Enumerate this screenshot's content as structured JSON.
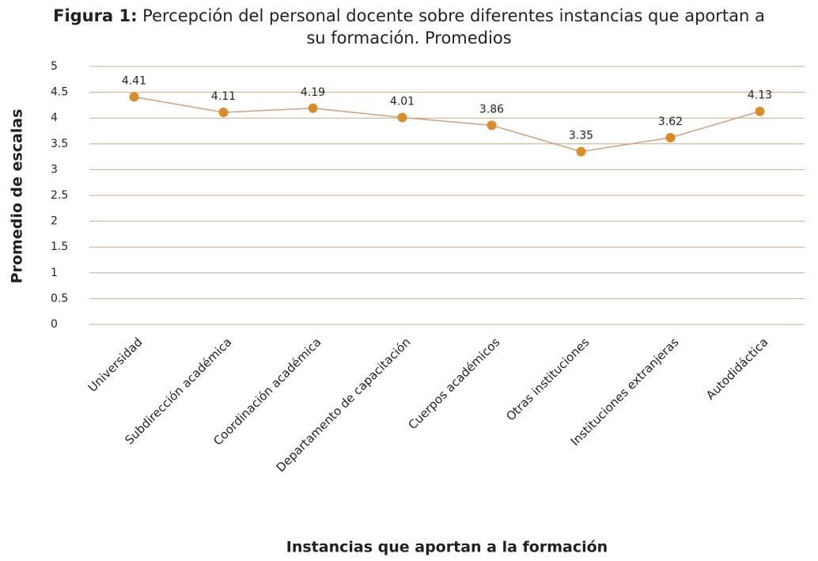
{
  "chart_data": {
    "type": "line",
    "title_prefix": "Figura 1:",
    "title": "Percepción del personal docente sobre diferentes instancias que aportan a su formación. Promedios",
    "y_label": "Promedio de escalas",
    "x_label": "Instancias que aportan a la formación",
    "categories": [
      "Universidad",
      "Subdirección académica",
      "Coordinación académica",
      "Departamento de capacitación",
      "Cuerpos académicos",
      "Otras instituciones",
      "Instituciones extranjeras",
      "Autodidáctica"
    ],
    "series": [
      {
        "name": "Promedio",
        "line_color": "#c9a285",
        "color": "#d98c2b",
        "values": [
          4.41,
          4.11,
          4.19,
          4.01,
          3.86,
          3.35,
          3.62,
          4.13
        ]
      }
    ],
    "ylim": [
      0,
      5
    ],
    "yticks": [
      0,
      0.5,
      1,
      1.5,
      2,
      2.5,
      3,
      3.5,
      4,
      4.5,
      5
    ],
    "grid": true,
    "grid_color": "#c8ab8e"
  }
}
